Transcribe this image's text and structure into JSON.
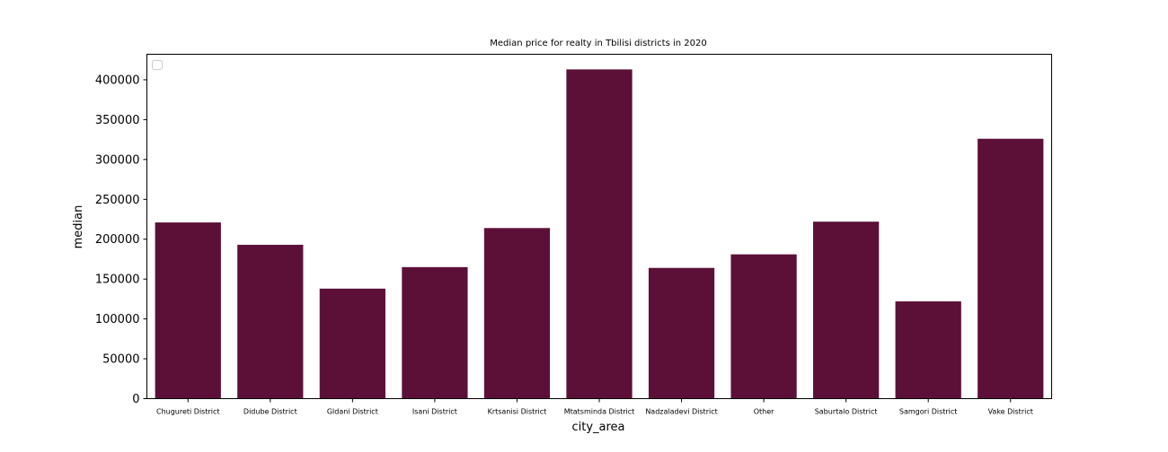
{
  "chart_data": {
    "type": "bar",
    "title": "Median price for realty in Tbilisi districts in 2020",
    "xlabel": "city_area",
    "ylabel": "median",
    "categories": [
      "Chugureti District",
      "Didube District",
      "Gldani District",
      "Isani District",
      "Krtsanisi District",
      "Mtatsminda District",
      "Nadzaladevi District",
      "Other",
      "Saburtalo District",
      "Samgori District",
      "Vake District"
    ],
    "values": [
      221000,
      193000,
      138000,
      165000,
      214000,
      413000,
      164000,
      181000,
      222000,
      122000,
      326000
    ],
    "yticks": [
      "0",
      "50000",
      "100000",
      "150000",
      "200000",
      "250000",
      "300000",
      "350000",
      "400000"
    ],
    "ylim": [
      0,
      432000
    ],
    "bar_color": "#5c1038",
    "legend": "top-left (empty)",
    "grid": false
  }
}
